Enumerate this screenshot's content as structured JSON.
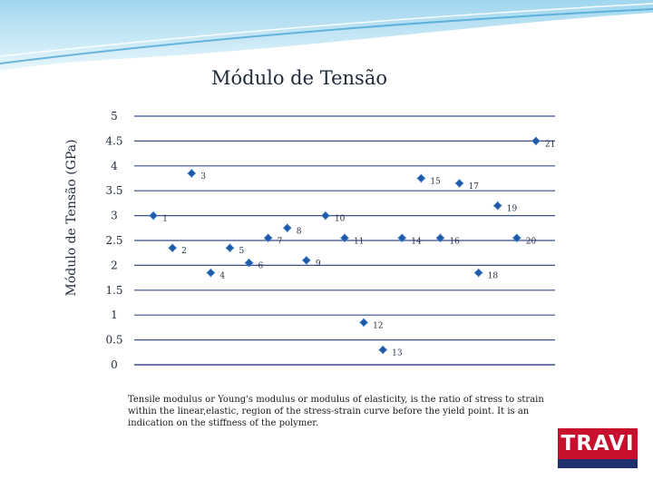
{
  "chart_data": {
    "type": "scatter",
    "title": "Módulo de Tensão",
    "xlabel": "",
    "ylabel": "Módulo de Tensão (GPa)",
    "ylim": [
      0,
      5
    ],
    "yticks": [
      "0",
      "0.5",
      "1",
      "1.5",
      "2",
      "2.5",
      "3",
      "3.5",
      "4",
      "4.5",
      "5"
    ],
    "xlim": [
      0,
      22
    ],
    "grid": "horizontal",
    "marker_color": "#3a78c8",
    "points": [
      {
        "label": "1",
        "x": 1,
        "y": 3.0
      },
      {
        "label": "2",
        "x": 2,
        "y": 2.35
      },
      {
        "label": "3",
        "x": 3,
        "y": 3.85
      },
      {
        "label": "4",
        "x": 4,
        "y": 1.85
      },
      {
        "label": "5",
        "x": 5,
        "y": 2.35
      },
      {
        "label": "6",
        "x": 6,
        "y": 2.05
      },
      {
        "label": "7",
        "x": 7,
        "y": 2.55
      },
      {
        "label": "8",
        "x": 8,
        "y": 2.75
      },
      {
        "label": "9",
        "x": 9,
        "y": 2.1
      },
      {
        "label": "10",
        "x": 10,
        "y": 3.0
      },
      {
        "label": "11",
        "x": 11,
        "y": 2.55
      },
      {
        "label": "12",
        "x": 12,
        "y": 0.85
      },
      {
        "label": "13",
        "x": 13,
        "y": 0.3
      },
      {
        "label": "14",
        "x": 14,
        "y": 2.55
      },
      {
        "label": "15",
        "x": 15,
        "y": 3.75
      },
      {
        "label": "16",
        "x": 16,
        "y": 2.55
      },
      {
        "label": "17",
        "x": 17,
        "y": 3.65
      },
      {
        "label": "18",
        "x": 18,
        "y": 1.85
      },
      {
        "label": "19",
        "x": 19,
        "y": 3.2
      },
      {
        "label": "20",
        "x": 20,
        "y": 2.55
      },
      {
        "label": "21",
        "x": 21,
        "y": 4.5
      }
    ]
  },
  "caption": "Tensile modulus or Young's modulus or modulus of elasticity, is the ratio of stress to strain within the linear,elastic, region of the stress-strain curve before the yield point. It is an indication on the stiffness of the polymer.",
  "logo": {
    "text": "TRAVI",
    "red": "#c8102e",
    "blue": "#1e2f6f"
  },
  "colors": {
    "grid": "#3a4f8a",
    "header": "#7ec3e3"
  }
}
